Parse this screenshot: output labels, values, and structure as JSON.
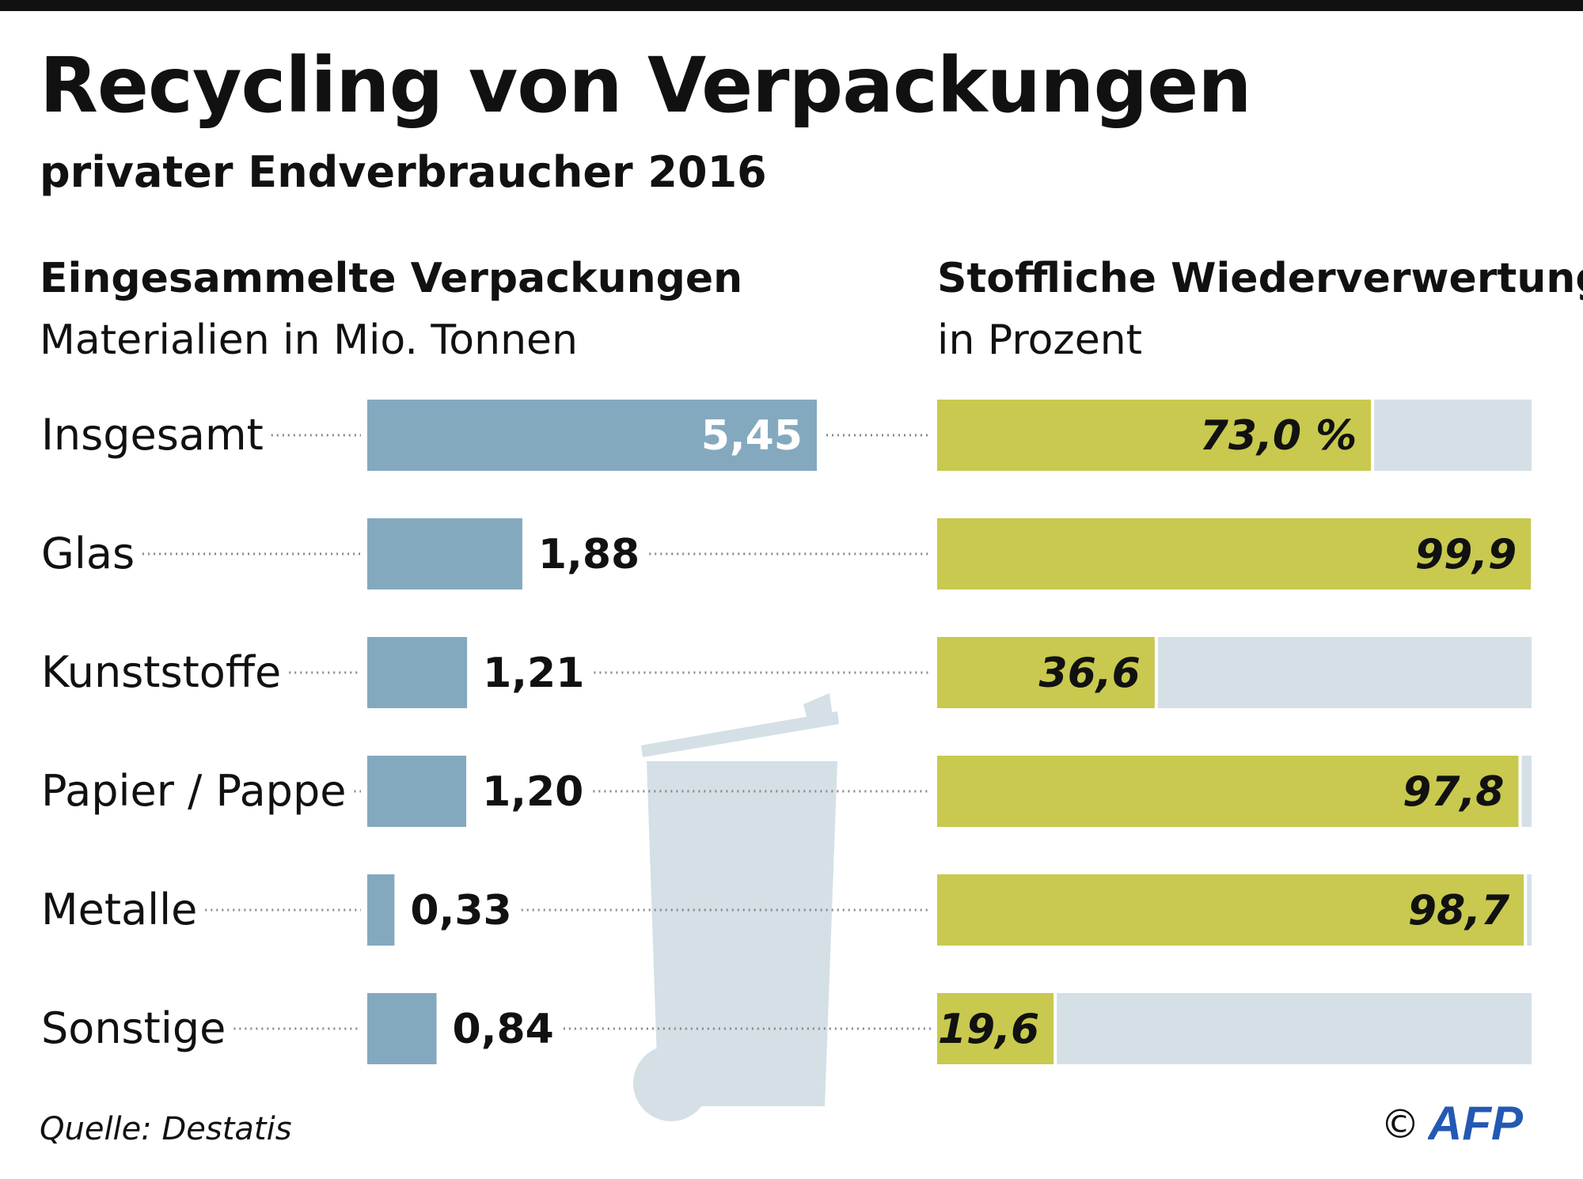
{
  "header": {
    "title": "Recycling von Verpackungen",
    "subtitle": "privater Endverbraucher 2016"
  },
  "left_section": {
    "heading": "Eingesammelte Verpackungen",
    "subheading": "Materialien in Mio. Tonnen"
  },
  "right_section": {
    "heading": "Stoffliche Wiederverwertung",
    "subheading": "in Prozent"
  },
  "footer": {
    "source": "Quelle: Destatis",
    "copyright": "©",
    "logo_text": "AFP"
  },
  "colors": {
    "tonnage_bar": "#84a9bf",
    "recycled_bar": "#c8c94e",
    "remainder_bar": "#d4e0e6",
    "bin_illustration": "#d4e0e6",
    "leader_dots": "#888888",
    "text": "#111111",
    "logo": "#2459b3"
  },
  "chart_data": [
    {
      "type": "bar",
      "orientation": "horizontal",
      "title": "Eingesammelte Verpackungen",
      "subtitle": "Materialien in Mio. Tonnen",
      "categories": [
        "Insgesamt",
        "Glas",
        "Kunststoffe",
        "Papier / Pappe",
        "Metalle",
        "Sonstige"
      ],
      "values": [
        5.45,
        1.88,
        1.21,
        1.2,
        0.33,
        0.84
      ],
      "value_labels": [
        "5,45",
        "1,88",
        "1,21",
        "1,20",
        "0,33",
        "0,84"
      ],
      "xlim": [
        0,
        5.45
      ],
      "grid": false,
      "legend": "none"
    },
    {
      "type": "bar",
      "orientation": "horizontal",
      "stacked_to": 100,
      "title": "Stoffliche Wiederverwertung",
      "subtitle": "in Prozent",
      "categories": [
        "Insgesamt",
        "Glas",
        "Kunststoffe",
        "Papier / Pappe",
        "Metalle",
        "Sonstige"
      ],
      "values": [
        73.0,
        99.9,
        36.6,
        97.8,
        98.7,
        19.6
      ],
      "value_labels": [
        "73,0 %",
        "99,9",
        "36,6",
        "97,8",
        "98,7",
        "19,6"
      ],
      "xlim": [
        0,
        100
      ],
      "grid": false,
      "legend": "none"
    }
  ]
}
